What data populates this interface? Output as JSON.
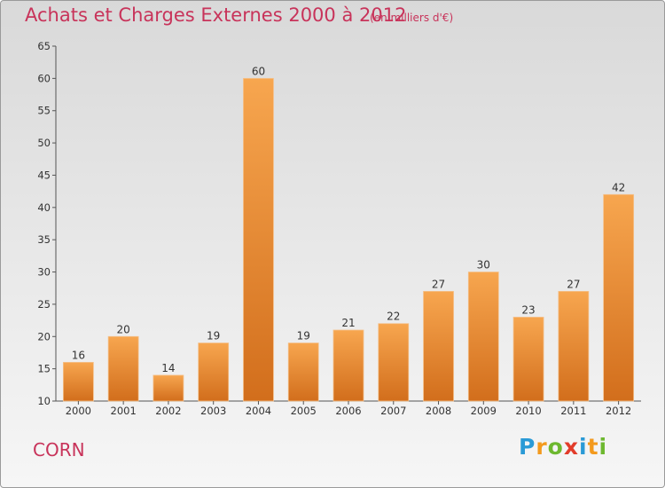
{
  "header": {
    "title": "Achats et Charges Externes 2000 à 2012",
    "subtitle": "(en milliers d'€)"
  },
  "footer": {
    "commune": "CORN",
    "logo": {
      "letters": [
        "P",
        "r",
        "o",
        "x",
        "i",
        "t",
        "i"
      ],
      "colors": [
        "#2a9ad6",
        "#f39a1e",
        "#6db82f",
        "#e23c2a",
        "#2a9ad6",
        "#f39a1e",
        "#6db82f"
      ]
    }
  },
  "colors": {
    "title": "#c8335a",
    "bar_light": "#f7a64f",
    "bar_dark": "#d26e1c",
    "axis_text": "#333333"
  },
  "chart_data": {
    "type": "bar",
    "categories": [
      "2000",
      "2001",
      "2002",
      "2003",
      "2004",
      "2005",
      "2006",
      "2007",
      "2008",
      "2009",
      "2010",
      "2011",
      "2012"
    ],
    "values": [
      16,
      20,
      14,
      19,
      60,
      19,
      21,
      22,
      27,
      30,
      23,
      27,
      42
    ],
    "title": "Achats et Charges Externes 2000 à 2012",
    "ylabel": "",
    "xlabel": "",
    "ylim": [
      10,
      65
    ],
    "yticks": [
      10,
      15,
      20,
      25,
      30,
      35,
      40,
      45,
      50,
      55,
      60,
      65
    ],
    "grid": false,
    "data_labels": true
  }
}
